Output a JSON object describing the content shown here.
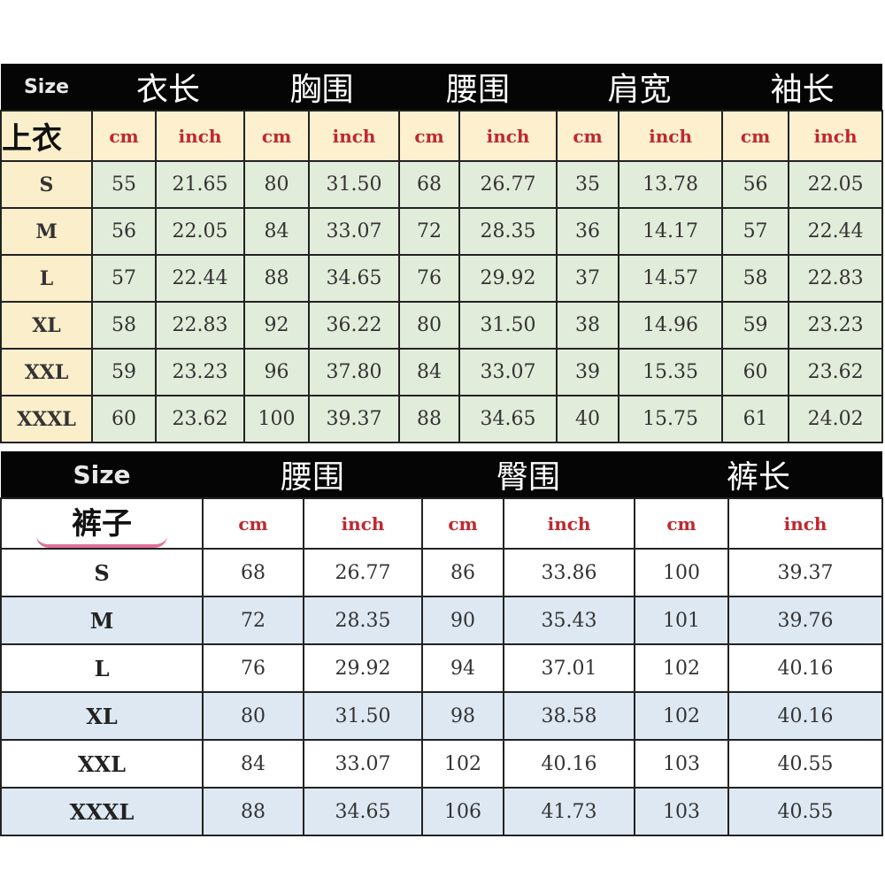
{
  "top": {
    "size_label": "Size",
    "category": "上衣",
    "groups": [
      "衣长",
      "胸围",
      "腰围",
      "肩宽",
      "袖长"
    ],
    "units": [
      "cm",
      "inch"
    ],
    "rows": [
      {
        "size": "S",
        "values": [
          "55",
          "21.65",
          "80",
          "31.50",
          "68",
          "26.77",
          "35",
          "13.78",
          "56",
          "22.05"
        ]
      },
      {
        "size": "M",
        "values": [
          "56",
          "22.05",
          "84",
          "33.07",
          "72",
          "28.35",
          "36",
          "14.17",
          "57",
          "22.44"
        ]
      },
      {
        "size": "L",
        "values": [
          "57",
          "22.44",
          "88",
          "34.65",
          "76",
          "29.92",
          "37",
          "14.57",
          "58",
          "22.83"
        ]
      },
      {
        "size": "XL",
        "values": [
          "58",
          "22.83",
          "92",
          "36.22",
          "80",
          "31.50",
          "38",
          "14.96",
          "59",
          "23.23"
        ]
      },
      {
        "size": "XXL",
        "values": [
          "59",
          "23.23",
          "96",
          "37.80",
          "84",
          "33.07",
          "39",
          "15.35",
          "60",
          "23.62"
        ]
      },
      {
        "size": "XXXL",
        "values": [
          "60",
          "23.62",
          "100",
          "39.37",
          "88",
          "34.65",
          "40",
          "15.75",
          "61",
          "24.02"
        ]
      }
    ]
  },
  "bottom": {
    "size_label": "Size",
    "category": "裤子",
    "groups": [
      "腰围",
      "臀围",
      "裤长"
    ],
    "units": [
      "cm",
      "inch"
    ],
    "rows": [
      {
        "size": "S",
        "values": [
          "68",
          "26.77",
          "86",
          "33.86",
          "100",
          "39.37"
        ]
      },
      {
        "size": "M",
        "values": [
          "72",
          "28.35",
          "90",
          "35.43",
          "101",
          "39.76"
        ]
      },
      {
        "size": "L",
        "values": [
          "76",
          "29.92",
          "94",
          "37.01",
          "102",
          "40.16"
        ]
      },
      {
        "size": "XL",
        "values": [
          "80",
          "31.50",
          "98",
          "38.58",
          "102",
          "40.16"
        ]
      },
      {
        "size": "XXL",
        "values": [
          "84",
          "33.07",
          "102",
          "40.16",
          "103",
          "40.55"
        ]
      },
      {
        "size": "XXXL",
        "values": [
          "88",
          "34.65",
          "106",
          "41.73",
          "103",
          "40.55"
        ]
      }
    ]
  },
  "colors": {
    "unit_text": "#c0282e",
    "top_data_bg": "#e2ecda",
    "top_size_bg": "#fbeecb",
    "bottom_alt_bg": "#dde8f3",
    "header_bg": "#050505"
  }
}
